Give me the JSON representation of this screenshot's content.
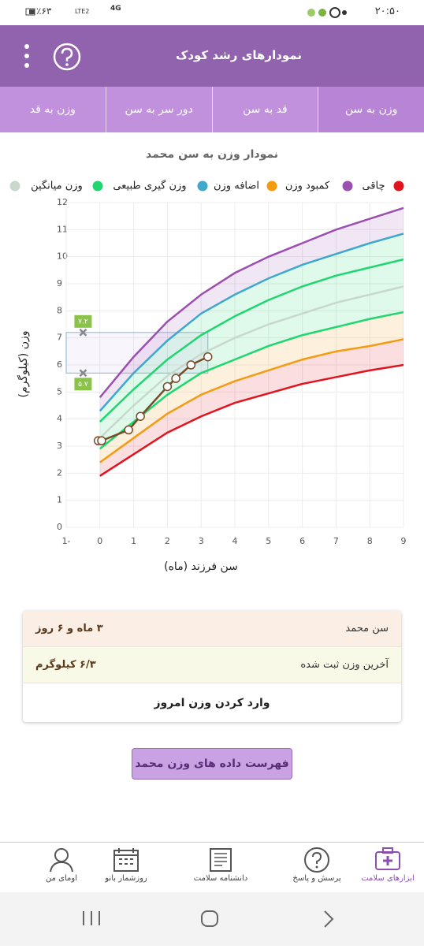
{
  "status_bar": {
    "time": "۲۰:۵۰",
    "battery": "٪۶۳",
    "network": "4G",
    "lte": "LTE2"
  },
  "app_bar": {
    "title": "نمودارهای رشد کودک"
  },
  "tabs": [
    "وزن به سن",
    "قد به سن",
    "دور سر به سن",
    "وزن به قد"
  ],
  "chart_data": {
    "type": "line",
    "title": "نمودار وزن به سن محمد",
    "x_label": "سن فرزند (ماه)",
    "y_label": "وزن (کیلوگرم)",
    "x": [
      0,
      1,
      2,
      3,
      4,
      5,
      6,
      7,
      8,
      9
    ],
    "series": [
      {
        "color": "#e0141e",
        "values": [
          1.9,
          2.7,
          3.5,
          4.1,
          4.6,
          4.95,
          5.3,
          5.55,
          5.8,
          6.0
        ]
      },
      {
        "name": "چاقی",
        "color": "#9b4fb0",
        "values": [
          4.8,
          6.3,
          7.6,
          8.6,
          9.4,
          10.0,
          10.5,
          11.0,
          11.4,
          11.8
        ]
      },
      {
        "name": "کمبود وزن",
        "color": "#f39c12",
        "values": [
          2.4,
          3.3,
          4.2,
          4.9,
          5.4,
          5.8,
          6.2,
          6.5,
          6.7,
          6.95
        ]
      },
      {
        "name": "اضافه وزن",
        "color": "#3fa8cc",
        "values": [
          4.3,
          5.7,
          6.9,
          7.9,
          8.6,
          9.2,
          9.7,
          10.1,
          10.5,
          10.85
        ]
      },
      {
        "name": "وزن گیری طبیعی",
        "color": "#1fd66f",
        "values": [
          3.9,
          5.1,
          6.2,
          7.1,
          7.8,
          8.4,
          8.9,
          9.3,
          9.6,
          9.9
        ]
      },
      {
        "name": "وزن میانگین",
        "color": "#c8d8cc",
        "values": [
          3.3,
          4.5,
          5.6,
          6.4,
          7.0,
          7.5,
          7.9,
          8.3,
          8.6,
          8.9
        ]
      },
      {
        "color": "#1fd66f",
        "values": [
          2.9,
          3.9,
          4.9,
          5.7,
          6.2,
          6.7,
          7.1,
          7.4,
          7.7,
          7.95
        ]
      }
    ],
    "points": {
      "color": "#7a4a28",
      "x": [
        -0.05,
        0.05,
        0.85,
        1.2,
        2.0,
        2.25,
        2.7,
        3.2
      ],
      "values": [
        3.2,
        3.2,
        3.6,
        4.1,
        5.2,
        5.5,
        6.0,
        6.3
      ]
    },
    "range": {
      "values": [
        5.7,
        7.2
      ],
      "value_labels": [
        "۵.۷",
        "۷.۲"
      ]
    },
    "xlim": [
      -1,
      9
    ],
    "xticks": [
      -1,
      0,
      1,
      2,
      3,
      4,
      5,
      6,
      7,
      8,
      9
    ],
    "ylim": [
      0,
      12
    ],
    "yticks": [
      0,
      1,
      2,
      3,
      4,
      5,
      6,
      7,
      8,
      9,
      10,
      11,
      12
    ],
    "grid": true
  },
  "info": {
    "rows": [
      {
        "label": "سن محمد",
        "value": "۳ ماه و ۶ روز"
      },
      {
        "label": "آخرین وزن ثبت شده",
        "value": "۶/۳ کیلوگرم"
      }
    ],
    "action": "وارد کردن وزن امروز"
  },
  "button": "فهرست داده های وزن محمد",
  "bottom_nav": [
    "ابزارهای سلامت",
    "پرسش و پاسخ",
    "دانشنامه سلامت",
    "روزشمار بانو",
    "اومای من"
  ]
}
